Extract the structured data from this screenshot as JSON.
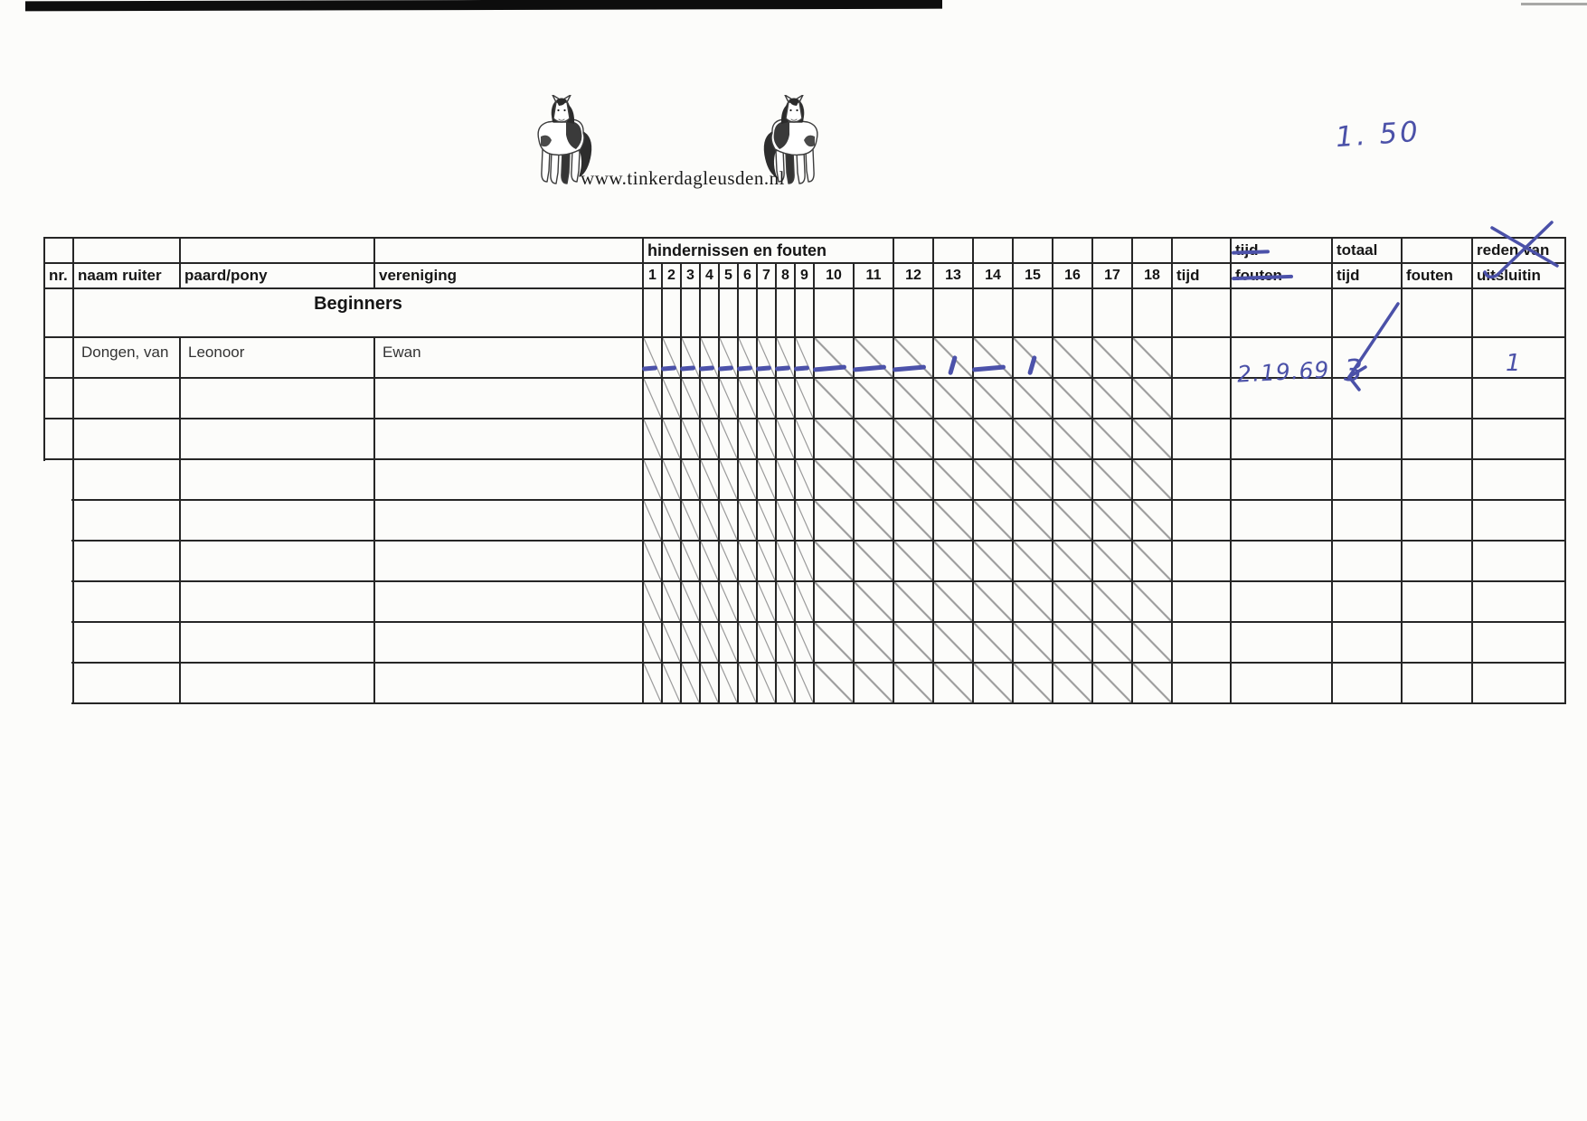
{
  "page": {
    "website": "www.tinkerdagleusden.nl",
    "handwritten_course_height": "1. 50",
    "pen_color": "#4b51a8"
  },
  "table": {
    "header": {
      "group_label": "hindernissen en fouten",
      "col_nr": "nr.",
      "col_naam": "naam ruiter",
      "col_paard": "paard/pony",
      "col_vereniging": "vereniging",
      "obstacle_numbers": [
        "1",
        "2",
        "3",
        "4",
        "5",
        "6",
        "7",
        "8",
        "9",
        "10",
        "11",
        "12",
        "13",
        "14",
        "15",
        "16",
        "17",
        "18"
      ],
      "col_tijd": "tijd",
      "col_tijd_fouten_line1": "tijd",
      "col_tijd_fouten_line2": "fouten",
      "col_totaal_line1": "totaal",
      "col_totaal_line2": "tijd",
      "col_fouten": "fouten",
      "col_reden_line1": "reden van",
      "col_reden_line2": "uitsluitin"
    },
    "category_row": "Beginners",
    "rows": [
      {
        "nr": "",
        "naam": "Dongen, van",
        "paard": "Leonoor",
        "vereniging": "Ewan",
        "marks": [
          "-",
          "-",
          "-",
          "-",
          "-",
          "-",
          "-",
          "-",
          "-",
          "-",
          "-",
          "-",
          "/",
          "-",
          "/",
          "",
          "",
          ""
        ],
        "tijd": "",
        "tijd_fouten_hand": "2.19.69",
        "totaal_tijd_hand": "3",
        "fouten": "",
        "reden_hand": "1"
      },
      {
        "nr": "",
        "naam": "",
        "paard": "",
        "vereniging": "",
        "marks": [],
        "tijd": "",
        "tijd_fouten_hand": "",
        "totaal_tijd_hand": "",
        "fouten": "",
        "reden_hand": ""
      },
      {
        "nr": "",
        "naam": "",
        "paard": "",
        "vereniging": "",
        "marks": [],
        "tijd": "",
        "tijd_fouten_hand": "",
        "totaal_tijd_hand": "",
        "fouten": "",
        "reden_hand": ""
      },
      {
        "nr": "",
        "naam": "",
        "paard": "",
        "vereniging": "",
        "marks": [],
        "tijd": "",
        "tijd_fouten_hand": "",
        "totaal_tijd_hand": "",
        "fouten": "",
        "reden_hand": ""
      },
      {
        "nr": "",
        "naam": "",
        "paard": "",
        "vereniging": "",
        "marks": [],
        "tijd": "",
        "tijd_fouten_hand": "",
        "totaal_tijd_hand": "",
        "fouten": "",
        "reden_hand": ""
      },
      {
        "nr": "",
        "naam": "",
        "paard": "",
        "vereniging": "",
        "marks": [],
        "tijd": "",
        "tijd_fouten_hand": "",
        "totaal_tijd_hand": "",
        "fouten": "",
        "reden_hand": ""
      },
      {
        "nr": "",
        "naam": "",
        "paard": "",
        "vereniging": "",
        "marks": [],
        "tijd": "",
        "tijd_fouten_hand": "",
        "totaal_tijd_hand": "",
        "fouten": "",
        "reden_hand": ""
      },
      {
        "nr": "",
        "naam": "",
        "paard": "",
        "vereniging": "",
        "marks": [],
        "tijd": "",
        "tijd_fouten_hand": "",
        "totaal_tijd_hand": "",
        "fouten": "",
        "reden_hand": ""
      },
      {
        "nr": "",
        "naam": "",
        "paard": "",
        "vereniging": "",
        "marks": [],
        "tijd": "",
        "tijd_fouten_hand": "",
        "totaal_tijd_hand": "",
        "fouten": "",
        "reden_hand": ""
      }
    ]
  }
}
